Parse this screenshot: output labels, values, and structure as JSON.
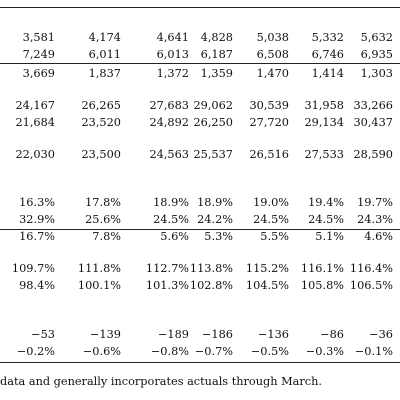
{
  "table": {
    "rows": [
      [
        "3,581",
        "4,174",
        "4,641",
        "4,828",
        "5,038",
        "5,332",
        "5,632"
      ],
      [
        "7,249",
        "6,011",
        "6,013",
        "6,187",
        "6,508",
        "6,746",
        "6,935"
      ],
      [
        "3,669",
        "1,837",
        "1,372",
        "1,359",
        "1,470",
        "1,414",
        "1,303"
      ],
      [
        "24,167",
        "26,265",
        "27,683",
        "29,062",
        "30,539",
        "31,958",
        "33,266"
      ],
      [
        "21,684",
        "23,520",
        "24,892",
        "26,250",
        "27,720",
        "29,134",
        "30,437"
      ],
      [
        "22,030",
        "23,500",
        "24,563",
        "25,537",
        "26,516",
        "27,533",
        "28,590"
      ],
      [
        "16.3%",
        "17.8%",
        "18.9%",
        "18.9%",
        "19.0%",
        "19.4%",
        "19.7%"
      ],
      [
        "32.9%",
        "25.6%",
        "24.5%",
        "24.2%",
        "24.5%",
        "24.5%",
        "24.3%"
      ],
      [
        "16.7%",
        "7.8%",
        "5.6%",
        "5.3%",
        "5.5%",
        "5.1%",
        "4.6%"
      ],
      [
        "109.7%",
        "111.8%",
        "112.7%",
        "113.8%",
        "115.2%",
        "116.1%",
        "116.4%"
      ],
      [
        "98.4%",
        "100.1%",
        "101.3%",
        "102.8%",
        "104.5%",
        "105.8%",
        "106.5%"
      ],
      [
        "−53",
        "−139",
        "−189",
        "−186",
        "−136",
        "−86",
        "−36"
      ],
      [
        "−0.2%",
        "−0.6%",
        "−0.8%",
        "−0.7%",
        "−0.5%",
        "−0.3%",
        "−0.1%"
      ]
    ]
  },
  "footnote": "data and generally incorporates actuals through March."
}
